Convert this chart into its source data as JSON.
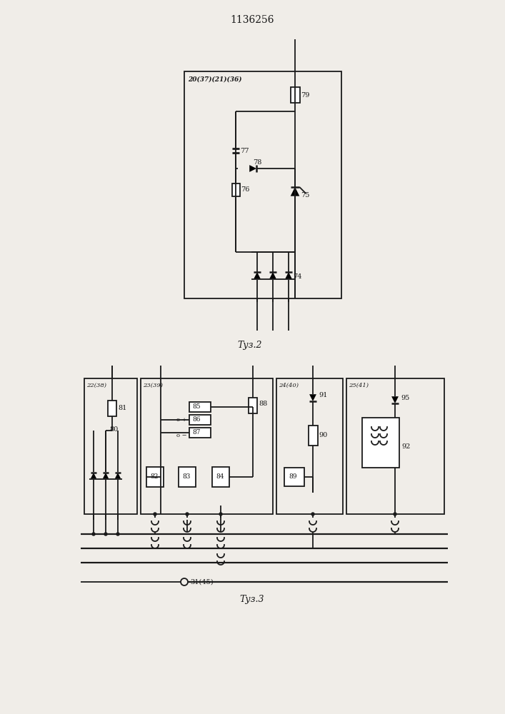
{
  "title": "1136256",
  "fig2_caption": "Τуз.2",
  "fig3_caption": "Τуз.3",
  "fig2_box_label": "20(37)(21)(36)",
  "fig2_r79": "79",
  "fig2_c77": "77",
  "fig2_d78": "78",
  "fig2_thy75": "75",
  "fig2_r76": "76",
  "fig2_d74": "74",
  "fig3_box22": "22(38)",
  "fig3_box23": "23(39)",
  "fig3_box24": "24(40)",
  "fig3_box25": "25(41)",
  "fig3_e81": "81",
  "fig3_e80": "80",
  "fig3_e85": "85",
  "fig3_e86": "86",
  "fig3_e87": "87",
  "fig3_e88": "88",
  "fig3_e82": "82",
  "fig3_e83": "83",
  "fig3_e84": "84",
  "fig3_e89": "89",
  "fig3_e90": "90",
  "fig3_e91": "91",
  "fig3_e92": "92",
  "fig3_e95": "95",
  "fig3_e31": "31(45)",
  "bg_color": "#f0ede8",
  "lc": "#1a1a1a"
}
